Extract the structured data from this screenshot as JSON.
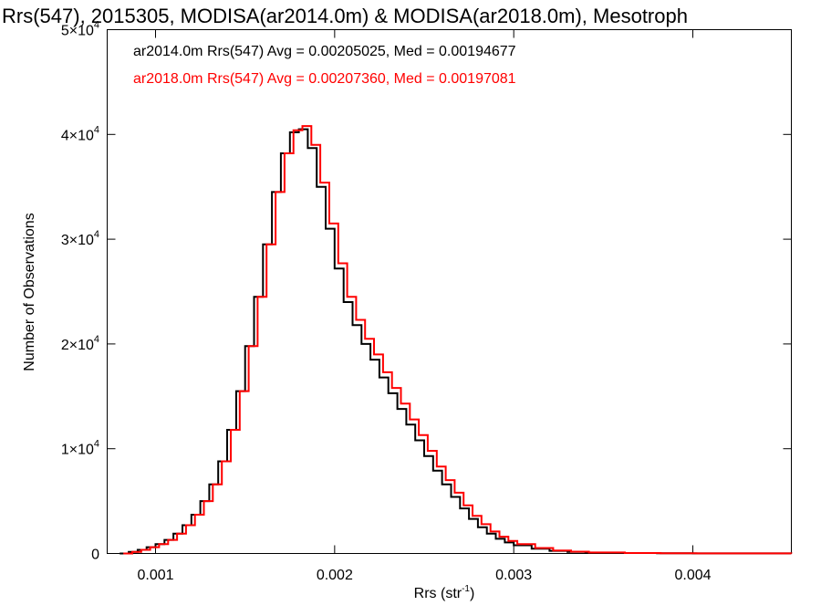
{
  "chart_data": {
    "type": "line",
    "title": "Rrs(547), 2015305, MODISA(ar2014.0m) & MODISA(ar2018.0m), Mesotroph",
    "xlabel": {
      "base": "Rrs (str",
      "sup": "-1",
      "close": ")"
    },
    "ylabel": "Number of Observations",
    "xlim": [
      0.00073,
      0.00455
    ],
    "ylim": [
      0,
      50000
    ],
    "x_ticks": [
      {
        "value": 0.001,
        "label": "0.001"
      },
      {
        "value": 0.002,
        "label": "0.002"
      },
      {
        "value": 0.003,
        "label": "0.003"
      },
      {
        "value": 0.004,
        "label": "0.004"
      }
    ],
    "y_ticks": [
      {
        "value": 0,
        "mant": "0",
        "exp": ""
      },
      {
        "value": 10000,
        "mant": "1×10",
        "exp": "4"
      },
      {
        "value": 20000,
        "mant": "2×10",
        "exp": "4"
      },
      {
        "value": 30000,
        "mant": "3×10",
        "exp": "4"
      },
      {
        "value": 40000,
        "mant": "4×10",
        "exp": "4"
      },
      {
        "value": 50000,
        "mant": "5×10",
        "exp": "4"
      }
    ],
    "legend": [
      {
        "text": "ar2014.0m Rrs(547) Avg = 0.00205025, Med = 0.00194677",
        "color": "#000000"
      },
      {
        "text": "ar2018.0m Rrs(547) Avg = 0.00207360, Med = 0.00197081",
        "color": "#ff0000"
      }
    ],
    "legend_position": "top-left",
    "series": [
      {
        "name": "ar2014.0m",
        "color": "#000000",
        "points": [
          [
            0.0008,
            0
          ],
          [
            0.00085,
            150
          ],
          [
            0.0009,
            350
          ],
          [
            0.00095,
            600
          ],
          [
            0.001,
            900
          ],
          [
            0.00105,
            1300
          ],
          [
            0.0011,
            1900
          ],
          [
            0.00115,
            2700
          ],
          [
            0.0012,
            3700
          ],
          [
            0.00125,
            5000
          ],
          [
            0.0013,
            6600
          ],
          [
            0.00135,
            8800
          ],
          [
            0.0014,
            11800
          ],
          [
            0.00145,
            15500
          ],
          [
            0.0015,
            19800
          ],
          [
            0.00155,
            24500
          ],
          [
            0.0016,
            29500
          ],
          [
            0.00165,
            34500
          ],
          [
            0.0017,
            38200
          ],
          [
            0.00175,
            40200
          ],
          [
            0.0018,
            40500
          ],
          [
            0.00185,
            38700
          ],
          [
            0.0019,
            35000
          ],
          [
            0.00195,
            31000
          ],
          [
            0.002,
            27200
          ],
          [
            0.00205,
            24000
          ],
          [
            0.0021,
            21800
          ],
          [
            0.00215,
            20000
          ],
          [
            0.0022,
            18500
          ],
          [
            0.00225,
            16800
          ],
          [
            0.0023,
            15300
          ],
          [
            0.00235,
            13800
          ],
          [
            0.0024,
            12300
          ],
          [
            0.00245,
            10800
          ],
          [
            0.0025,
            9300
          ],
          [
            0.00255,
            7900
          ],
          [
            0.0026,
            6600
          ],
          [
            0.00265,
            5400
          ],
          [
            0.0027,
            4300
          ],
          [
            0.00275,
            3300
          ],
          [
            0.0028,
            2500
          ],
          [
            0.00285,
            1900
          ],
          [
            0.0029,
            1400
          ],
          [
            0.00295,
            1050
          ],
          [
            0.003,
            780
          ],
          [
            0.0031,
            450
          ],
          [
            0.0032,
            250
          ],
          [
            0.0033,
            150
          ],
          [
            0.0034,
            90
          ],
          [
            0.0036,
            40
          ],
          [
            0.0038,
            20
          ],
          [
            0.004,
            10
          ],
          [
            0.0042,
            5
          ],
          [
            0.00455,
            0
          ]
        ]
      },
      {
        "name": "ar2018.0m",
        "color": "#ff0000",
        "points": [
          [
            0.00082,
            0
          ],
          [
            0.00087,
            150
          ],
          [
            0.00092,
            350
          ],
          [
            0.00097,
            600
          ],
          [
            0.00102,
            900
          ],
          [
            0.00107,
            1300
          ],
          [
            0.00112,
            1900
          ],
          [
            0.00117,
            2700
          ],
          [
            0.00122,
            3700
          ],
          [
            0.00127,
            5000
          ],
          [
            0.00132,
            6600
          ],
          [
            0.00137,
            8800
          ],
          [
            0.00142,
            11800
          ],
          [
            0.00147,
            15500
          ],
          [
            0.00152,
            19800
          ],
          [
            0.00157,
            24500
          ],
          [
            0.00162,
            29500
          ],
          [
            0.00167,
            34500
          ],
          [
            0.00172,
            38200
          ],
          [
            0.00177,
            40400
          ],
          [
            0.00182,
            40800
          ],
          [
            0.00187,
            39000
          ],
          [
            0.00192,
            35400
          ],
          [
            0.00197,
            31500
          ],
          [
            0.00202,
            27700
          ],
          [
            0.00207,
            24500
          ],
          [
            0.00212,
            22300
          ],
          [
            0.00217,
            20500
          ],
          [
            0.00222,
            19000
          ],
          [
            0.00227,
            17300
          ],
          [
            0.00232,
            15800
          ],
          [
            0.00237,
            14300
          ],
          [
            0.00242,
            12800
          ],
          [
            0.00247,
            11300
          ],
          [
            0.00252,
            9800
          ],
          [
            0.00257,
            8300
          ],
          [
            0.00262,
            7000
          ],
          [
            0.00267,
            5800
          ],
          [
            0.00272,
            4600
          ],
          [
            0.00277,
            3600
          ],
          [
            0.00282,
            2800
          ],
          [
            0.00287,
            2100
          ],
          [
            0.00292,
            1600
          ],
          [
            0.00297,
            1200
          ],
          [
            0.00302,
            900
          ],
          [
            0.00312,
            520
          ],
          [
            0.00322,
            290
          ],
          [
            0.00332,
            170
          ],
          [
            0.00342,
            100
          ],
          [
            0.00362,
            45
          ],
          [
            0.00382,
            22
          ],
          [
            0.00402,
            11
          ],
          [
            0.00422,
            5
          ],
          [
            0.00455,
            0
          ]
        ]
      }
    ]
  }
}
